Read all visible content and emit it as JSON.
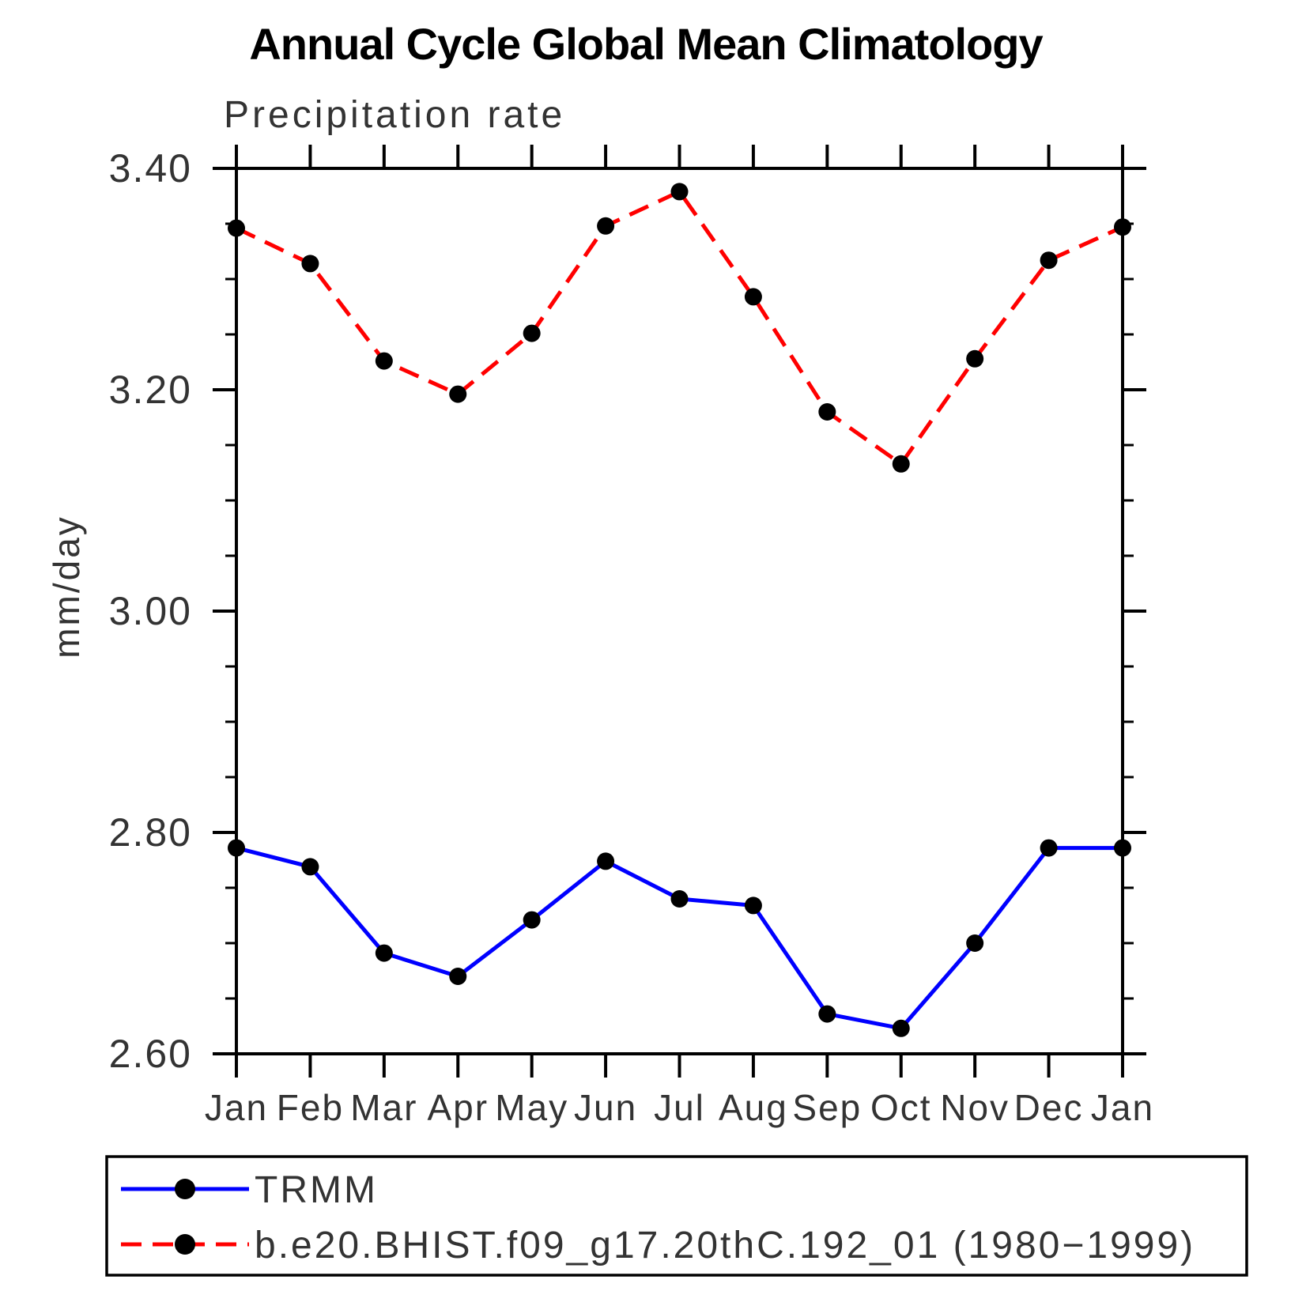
{
  "header": {
    "title": "Annual Cycle Global Mean Climatology",
    "subtitle": "Precipitation rate"
  },
  "chart_data": {
    "type": "line",
    "title": "Annual Cycle Global Mean Climatology",
    "subtitle": "Precipitation rate",
    "xlabel": "",
    "ylabel": "mm/day",
    "x_categories": [
      "Jan",
      "Feb",
      "Mar",
      "Apr",
      "May",
      "Jun",
      "Jul",
      "Aug",
      "Sep",
      "Oct",
      "Nov",
      "Dec",
      "Jan"
    ],
    "ylim": [
      2.6,
      3.4
    ],
    "ytick_major": [
      2.6,
      2.8,
      3.0,
      3.2,
      3.4
    ],
    "ytick_labels": [
      "2.60",
      "2.80",
      "3.00",
      "3.20",
      "3.40"
    ],
    "ytick_minor_step": 0.05,
    "grid": false,
    "legend_position": "bottom",
    "marker_color": "#000000",
    "series": [
      {
        "name": "TRMM",
        "color": "#0000ff",
        "line_style": "solid",
        "marker": "filled-circle",
        "values": [
          2.786,
          2.769,
          2.691,
          2.67,
          2.721,
          2.774,
          2.74,
          2.734,
          2.636,
          2.623,
          2.7,
          2.786,
          2.786
        ]
      },
      {
        "name": "b.e20.BHIST.f09_g17.20thC.192_01 (1980−1999)",
        "color": "#ff0000",
        "line_style": "dashed",
        "marker": "filled-circle",
        "values": [
          3.346,
          3.314,
          3.226,
          3.196,
          3.251,
          3.348,
          3.379,
          3.284,
          3.18,
          3.133,
          3.228,
          3.317,
          3.347
        ]
      }
    ]
  }
}
